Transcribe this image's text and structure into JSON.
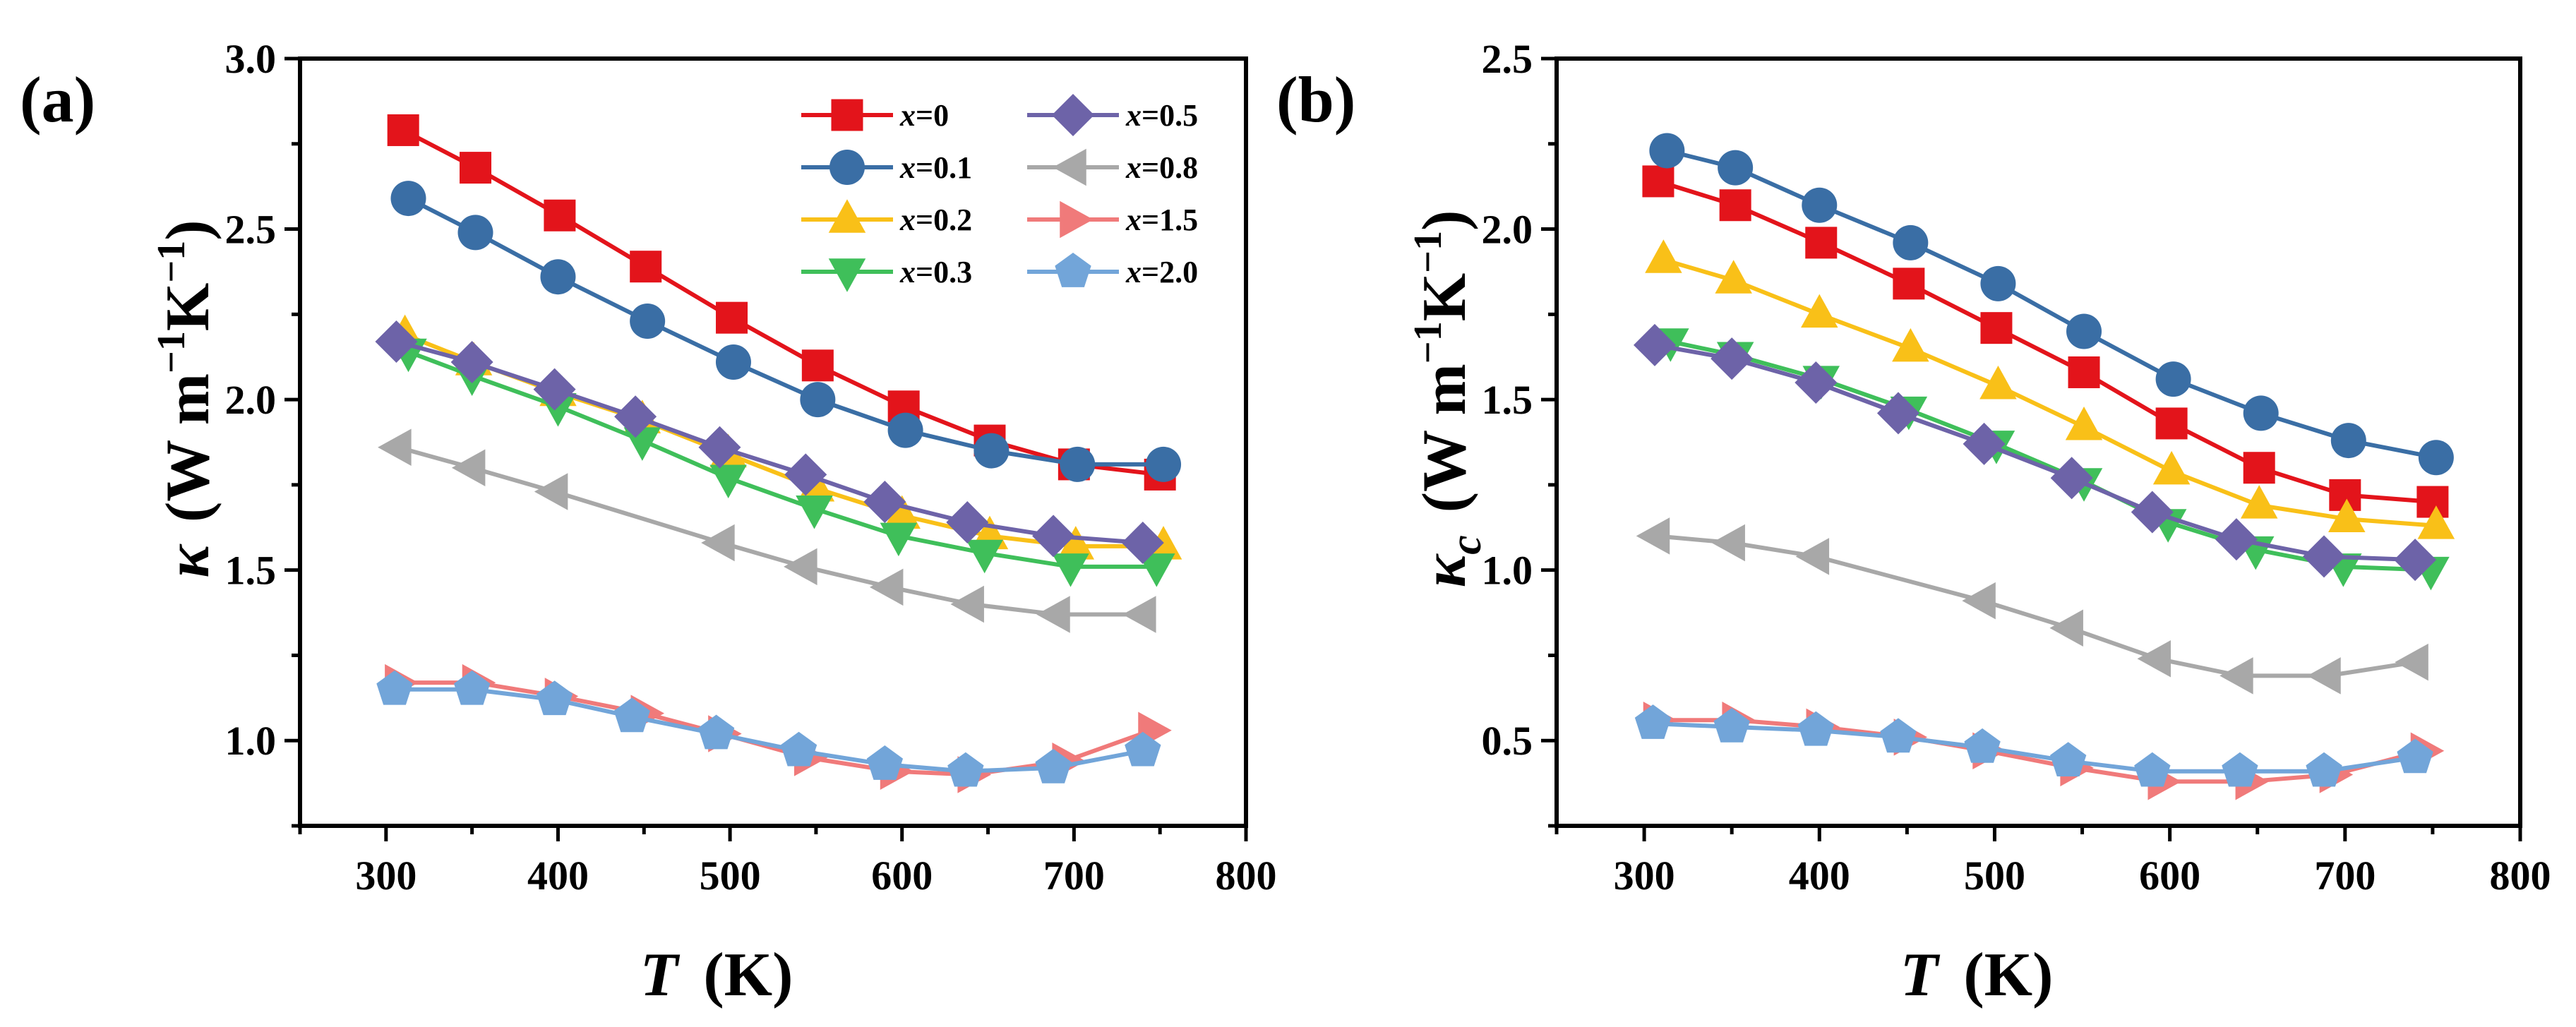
{
  "colors": {
    "x=0": "#e3141b",
    "x=0.1": "#3a6ea5",
    "x=0.2": "#f9c018",
    "x=0.3": "#3fbf5a",
    "x=0.5": "#6d63a8",
    "x=0.8": "#a8a8a8",
    "x=1.5": "#f07a7a",
    "x=2.0": "#72a5d9"
  },
  "chart_data": [
    {
      "type": "line",
      "panel_label": "(a)",
      "ylabel": {
        "symbol": "κ",
        "unit": "(W m−1K−1)",
        "unit_parts": [
          "(W m",
          "−1",
          "K",
          "−1",
          ")"
        ]
      },
      "xlabel": {
        "symbol": "T",
        "unit": "(K)"
      },
      "xlim": [
        250,
        800
      ],
      "ylim": [
        0.75,
        3.0
      ],
      "xticks": [
        300,
        400,
        500,
        600,
        700,
        800
      ],
      "yticks": [
        1.0,
        1.5,
        2.0,
        2.5,
        3.0
      ],
      "ytick_labels": [
        "1.0",
        "1.5",
        "2.0",
        "2.5",
        "3.0"
      ],
      "legend": {
        "placement": "top-right",
        "entries": [
          {
            "prefix": "x",
            "value": "=0",
            "series": "x=0"
          },
          {
            "prefix": "x",
            "value": "=0.5",
            "series": "x=0.5"
          },
          {
            "prefix": "x",
            "value": "=0.1",
            "series": "x=0.1"
          },
          {
            "prefix": "x",
            "value": "=0.8",
            "series": "x=0.8"
          },
          {
            "prefix": "x",
            "value": "=0.2",
            "series": "x=0.2"
          },
          {
            "prefix": "x",
            "value": "=1.5",
            "series": "x=1.5"
          },
          {
            "prefix": "x",
            "value": "=0.3",
            "series": "x=0.3"
          },
          {
            "prefix": "x",
            "value": "=2.0",
            "series": "x=2.0"
          }
        ]
      },
      "series": [
        {
          "name": "x=0",
          "marker": "square",
          "x": [
            310,
            352,
            401,
            451,
            501,
            551,
            601,
            651,
            700,
            750
          ],
          "y": [
            2.79,
            2.68,
            2.54,
            2.39,
            2.24,
            2.1,
            1.98,
            1.88,
            1.81,
            1.78
          ]
        },
        {
          "name": "x=0.1",
          "marker": "circle",
          "x": [
            313,
            352,
            400,
            452,
            502,
            551,
            602,
            652,
            702,
            752
          ],
          "y": [
            2.59,
            2.49,
            2.36,
            2.23,
            2.11,
            2.0,
            1.91,
            1.85,
            1.81,
            1.81
          ]
        },
        {
          "name": "x=0.2",
          "marker": "triangle-up",
          "x": [
            311,
            351,
            400,
            449,
            499,
            550,
            600,
            651,
            701,
            752
          ],
          "y": [
            2.19,
            2.11,
            2.02,
            1.94,
            1.84,
            1.74,
            1.66,
            1.6,
            1.57,
            1.57
          ]
        },
        {
          "name": "x=0.3",
          "marker": "triangle-down",
          "x": [
            313,
            350,
            400,
            449,
            499,
            549,
            598,
            648,
            698,
            748
          ],
          "y": [
            2.14,
            2.07,
            1.98,
            1.88,
            1.77,
            1.68,
            1.6,
            1.55,
            1.51,
            1.51
          ]
        },
        {
          "name": "x=0.5",
          "marker": "diamond",
          "x": [
            306,
            350,
            398,
            445,
            494,
            544,
            590,
            638,
            688,
            740
          ],
          "y": [
            2.17,
            2.11,
            2.03,
            1.95,
            1.86,
            1.78,
            1.7,
            1.64,
            1.6,
            1.58
          ]
        },
        {
          "name": "x=0.8",
          "marker": "triangle-left",
          "x": [
            307,
            350,
            398,
            495,
            543,
            593,
            640,
            690,
            740
          ],
          "y": [
            1.86,
            1.8,
            1.73,
            1.58,
            1.51,
            1.45,
            1.4,
            1.37,
            1.37
          ]
        },
        {
          "name": "x=1.5",
          "marker": "triangle-right",
          "x": [
            307,
            352,
            400,
            450,
            495,
            545,
            595,
            640,
            695,
            745
          ],
          "y": [
            1.17,
            1.17,
            1.13,
            1.08,
            1.02,
            0.95,
            0.91,
            0.9,
            0.94,
            1.03
          ]
        },
        {
          "name": "x=2.0",
          "marker": "pentagon",
          "x": [
            305,
            350,
            398,
            443,
            492,
            540,
            590,
            637,
            688,
            740
          ],
          "y": [
            1.15,
            1.15,
            1.12,
            1.07,
            1.02,
            0.97,
            0.93,
            0.91,
            0.92,
            0.97
          ]
        }
      ]
    },
    {
      "type": "line",
      "panel_label": "(b)",
      "ylabel": {
        "symbol": "κ",
        "subscript": "c",
        "unit": "(W m−1K−1)",
        "unit_parts": [
          "(W m",
          "−1",
          "K",
          "−1",
          ")"
        ]
      },
      "xlabel": {
        "symbol": "T",
        "unit": "(K)"
      },
      "xlim": [
        250,
        800
      ],
      "ylim": [
        0.25,
        2.5
      ],
      "xticks": [
        300,
        400,
        500,
        600,
        700,
        800
      ],
      "yticks": [
        0.5,
        1.0,
        1.5,
        2.0,
        2.5
      ],
      "ytick_labels": [
        "0.5",
        "1.0",
        "1.5",
        "2.0",
        "2.5"
      ],
      "series": [
        {
          "name": "x=0",
          "marker": "square",
          "x": [
            308,
            352,
            401,
            451,
            501,
            551,
            601,
            651,
            700,
            750
          ],
          "y": [
            2.14,
            2.07,
            1.96,
            1.84,
            1.71,
            1.58,
            1.43,
            1.3,
            1.22,
            1.2
          ]
        },
        {
          "name": "x=0.1",
          "marker": "circle",
          "x": [
            313,
            352,
            400,
            452,
            502,
            551,
            602,
            652,
            702,
            752
          ],
          "y": [
            2.23,
            2.18,
            2.07,
            1.96,
            1.84,
            1.7,
            1.56,
            1.46,
            1.38,
            1.33
          ]
        },
        {
          "name": "x=0.2",
          "marker": "triangle-up",
          "x": [
            311,
            351,
            400,
            452,
            502,
            551,
            601,
            651,
            701,
            752
          ],
          "y": [
            1.91,
            1.85,
            1.75,
            1.65,
            1.54,
            1.42,
            1.29,
            1.19,
            1.15,
            1.13
          ]
        },
        {
          "name": "x=0.3",
          "marker": "triangle-down",
          "x": [
            315,
            352,
            401,
            451,
            501,
            551,
            599,
            649,
            699,
            749
          ],
          "y": [
            1.67,
            1.63,
            1.56,
            1.47,
            1.37,
            1.26,
            1.14,
            1.06,
            1.01,
            1.0
          ]
        },
        {
          "name": "x=0.5",
          "marker": "diamond",
          "x": [
            306,
            350,
            398,
            445,
            494,
            544,
            590,
            638,
            688,
            740
          ],
          "y": [
            1.66,
            1.62,
            1.55,
            1.46,
            1.37,
            1.27,
            1.17,
            1.09,
            1.04,
            1.03
          ]
        },
        {
          "name": "x=0.8",
          "marker": "triangle-left",
          "x": [
            307,
            350,
            398,
            493,
            543,
            593,
            640,
            690,
            740
          ],
          "y": [
            1.1,
            1.08,
            1.04,
            0.91,
            0.83,
            0.74,
            0.69,
            0.69,
            0.73
          ]
        },
        {
          "name": "x=1.5",
          "marker": "triangle-right",
          "x": [
            307,
            352,
            400,
            450,
            495,
            545,
            595,
            645,
            693,
            745
          ],
          "y": [
            0.56,
            0.56,
            0.54,
            0.51,
            0.47,
            0.42,
            0.38,
            0.38,
            0.4,
            0.47
          ]
        },
        {
          "name": "x=2.0",
          "marker": "pentagon",
          "x": [
            305,
            350,
            398,
            445,
            493,
            542,
            590,
            640,
            688,
            740
          ],
          "y": [
            0.55,
            0.54,
            0.53,
            0.51,
            0.48,
            0.44,
            0.41,
            0.41,
            0.41,
            0.45
          ]
        }
      ]
    }
  ]
}
